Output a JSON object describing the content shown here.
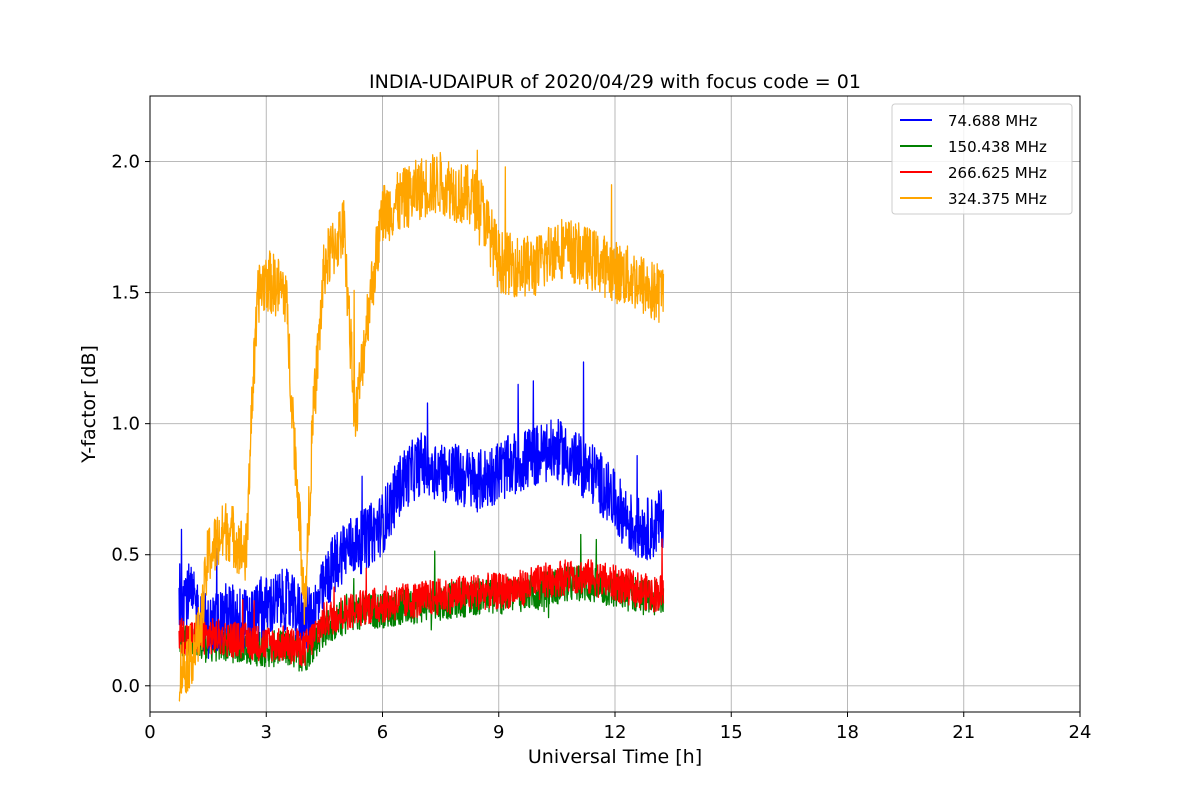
{
  "chart_data": {
    "type": "line",
    "title": "INDIA-UDAIPUR of 2020/04/29 with focus code = 01",
    "xlabel": "Universal Time [h]",
    "ylabel": "Y-factor [dB]",
    "xlim": [
      0,
      24
    ],
    "ylim": [
      -0.1,
      2.25
    ],
    "xticks": [
      0,
      3,
      6,
      9,
      12,
      15,
      18,
      21,
      24
    ],
    "yticks": [
      0.0,
      0.5,
      1.0,
      1.5,
      2.0
    ],
    "xtick_labels": [
      "0",
      "3",
      "6",
      "9",
      "12",
      "15",
      "18",
      "21",
      "24"
    ],
    "ytick_labels": [
      "0.0",
      "0.5",
      "1.0",
      "1.5",
      "2.0"
    ],
    "grid": true,
    "legend_position": "top-right",
    "series": [
      {
        "name": " 74.688 MHz",
        "color": "#0000ff",
        "x": [
          0.75,
          1.0,
          1.5,
          2.0,
          2.5,
          3.0,
          3.5,
          4.0,
          4.3,
          4.7,
          5.0,
          5.5,
          6.0,
          6.5,
          7.0,
          7.5,
          8.0,
          8.5,
          9.0,
          9.5,
          10.0,
          10.5,
          11.0,
          11.5,
          12.0,
          12.5,
          13.0,
          13.25
        ],
        "y": [
          0.35,
          0.35,
          0.22,
          0.28,
          0.25,
          0.3,
          0.33,
          0.25,
          0.3,
          0.45,
          0.52,
          0.55,
          0.62,
          0.78,
          0.85,
          0.82,
          0.8,
          0.78,
          0.82,
          0.85,
          0.88,
          0.9,
          0.85,
          0.8,
          0.7,
          0.6,
          0.6,
          0.65
        ],
        "noise": 0.12
      },
      {
        "name": "150.438 MHz",
        "color": "#008000",
        "x": [
          0.75,
          1.0,
          1.5,
          2.0,
          2.5,
          3.0,
          3.5,
          4.0,
          4.5,
          5.0,
          5.5,
          6.0,
          6.5,
          7.0,
          7.5,
          8.0,
          8.5,
          9.0,
          9.5,
          10.0,
          10.5,
          11.0,
          11.5,
          12.0,
          12.5,
          13.0,
          13.25
        ],
        "y": [
          0.18,
          0.15,
          0.16,
          0.16,
          0.15,
          0.14,
          0.14,
          0.12,
          0.22,
          0.26,
          0.28,
          0.29,
          0.3,
          0.31,
          0.32,
          0.33,
          0.34,
          0.34,
          0.35,
          0.36,
          0.38,
          0.39,
          0.38,
          0.36,
          0.35,
          0.33,
          0.33
        ],
        "noise": 0.07
      },
      {
        "name": "266.625 MHz",
        "color": "#ff0000",
        "x": [
          0.75,
          1.0,
          1.5,
          2.0,
          2.5,
          3.0,
          3.5,
          4.0,
          4.5,
          5.0,
          5.5,
          6.0,
          6.5,
          7.0,
          7.5,
          8.0,
          8.5,
          9.0,
          9.5,
          10.0,
          10.5,
          11.0,
          11.5,
          12.0,
          12.5,
          13.0,
          13.25
        ],
        "y": [
          0.2,
          0.18,
          0.19,
          0.18,
          0.17,
          0.16,
          0.16,
          0.14,
          0.25,
          0.28,
          0.3,
          0.31,
          0.32,
          0.33,
          0.34,
          0.35,
          0.36,
          0.36,
          0.37,
          0.39,
          0.41,
          0.42,
          0.41,
          0.39,
          0.37,
          0.35,
          0.36
        ],
        "noise": 0.07
      },
      {
        "name": "324.375 MHz",
        "color": "#ffa500",
        "x": [
          0.75,
          1.0,
          1.3,
          1.5,
          2.0,
          2.5,
          2.6,
          2.8,
          3.0,
          3.5,
          3.7,
          4.0,
          4.2,
          4.5,
          5.0,
          5.3,
          5.6,
          6.0,
          6.5,
          7.0,
          7.5,
          8.0,
          8.5,
          9.0,
          9.5,
          10.0,
          10.5,
          11.0,
          11.5,
          12.0,
          12.5,
          13.0,
          13.25
        ],
        "y": [
          0.05,
          0.1,
          0.2,
          0.5,
          0.6,
          0.5,
          1.0,
          1.5,
          1.55,
          1.5,
          1.0,
          0.3,
          1.0,
          1.6,
          1.75,
          1.0,
          1.4,
          1.8,
          1.85,
          1.9,
          1.92,
          1.88,
          1.85,
          1.62,
          1.6,
          1.6,
          1.68,
          1.65,
          1.62,
          1.58,
          1.55,
          1.5,
          1.5
        ],
        "noise": 0.12
      }
    ]
  }
}
